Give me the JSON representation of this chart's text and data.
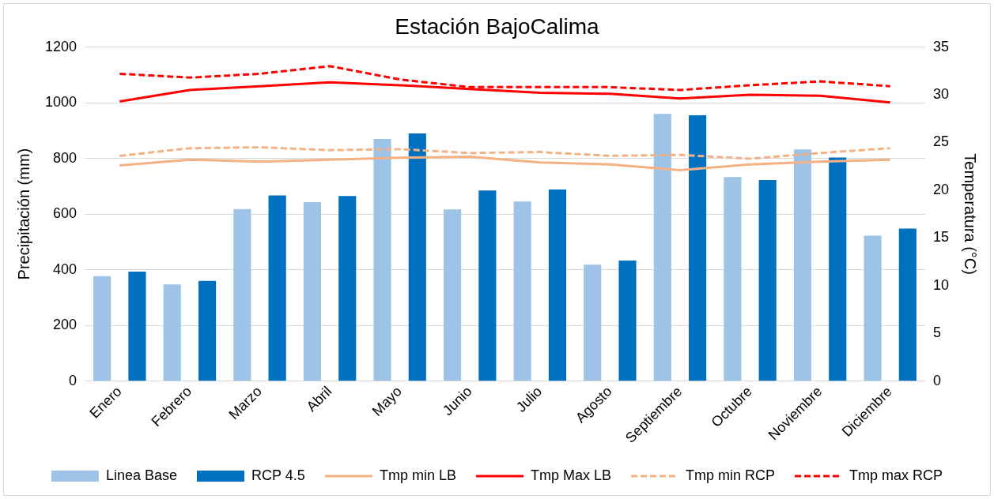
{
  "chart_data": {
    "type": "bar",
    "title": "Estación BajoCalima",
    "ylabel": "Precipitación (mm)",
    "y2label": "Temperatura (°C)",
    "categories": [
      "Enero",
      "Febrero",
      "Marzo",
      "Abril",
      "Mayo",
      "Junio",
      "Julio",
      "Agosto",
      "Septiembre",
      "Octubre",
      "Noviembre",
      "Diciembre"
    ],
    "series": [
      {
        "name": "Linea Base",
        "color": "#9dc3e6",
        "values": [
          377,
          347,
          618,
          643,
          870,
          617,
          645,
          418,
          960,
          733,
          832,
          522
        ]
      },
      {
        "name": "RCP 4.5",
        "color": "#0070c0",
        "values": [
          393,
          360,
          667,
          665,
          890,
          685,
          688,
          433,
          955,
          722,
          803,
          548
        ]
      },
      {
        "name": "Tmp min LB",
        "type": "line",
        "axis": "y2",
        "line_style": "solid",
        "color": "#f4b183",
        "values": [
          22.6,
          23.2,
          23.0,
          23.2,
          23.4,
          23.5,
          22.9,
          22.7,
          22.1,
          22.7,
          23.0,
          23.2
        ]
      },
      {
        "name": "Tmp Max LB",
        "type": "line",
        "axis": "y2",
        "line_style": "solid",
        "color": "#ff0000",
        "values": [
          29.3,
          30.5,
          30.9,
          31.3,
          31.0,
          30.6,
          30.2,
          30.1,
          29.6,
          30.0,
          29.9,
          29.2
        ]
      },
      {
        "name": "Tmp min RCP",
        "type": "line",
        "axis": "y2",
        "line_style": "dashed",
        "color": "#f4b183",
        "values": [
          23.6,
          24.4,
          24.5,
          24.2,
          24.3,
          23.9,
          24.0,
          23.6,
          23.7,
          23.3,
          23.9,
          24.4
        ]
      },
      {
        "name": "Tmp max RCP",
        "type": "line",
        "axis": "y2",
        "line_style": "dashed",
        "color": "#ff0000",
        "values": [
          32.2,
          31.8,
          32.2,
          33.0,
          31.6,
          30.8,
          30.8,
          30.8,
          30.5,
          31.0,
          31.4,
          30.9
        ]
      }
    ],
    "ylim": [
      0,
      1200
    ],
    "yticks": [
      0,
      200,
      400,
      600,
      800,
      1000,
      1200
    ],
    "y2lim": [
      0,
      35
    ],
    "y2ticks": [
      0,
      5,
      10,
      15,
      20,
      25,
      30,
      35
    ],
    "grid": "y",
    "legend": "bottom",
    "marker": "none"
  }
}
